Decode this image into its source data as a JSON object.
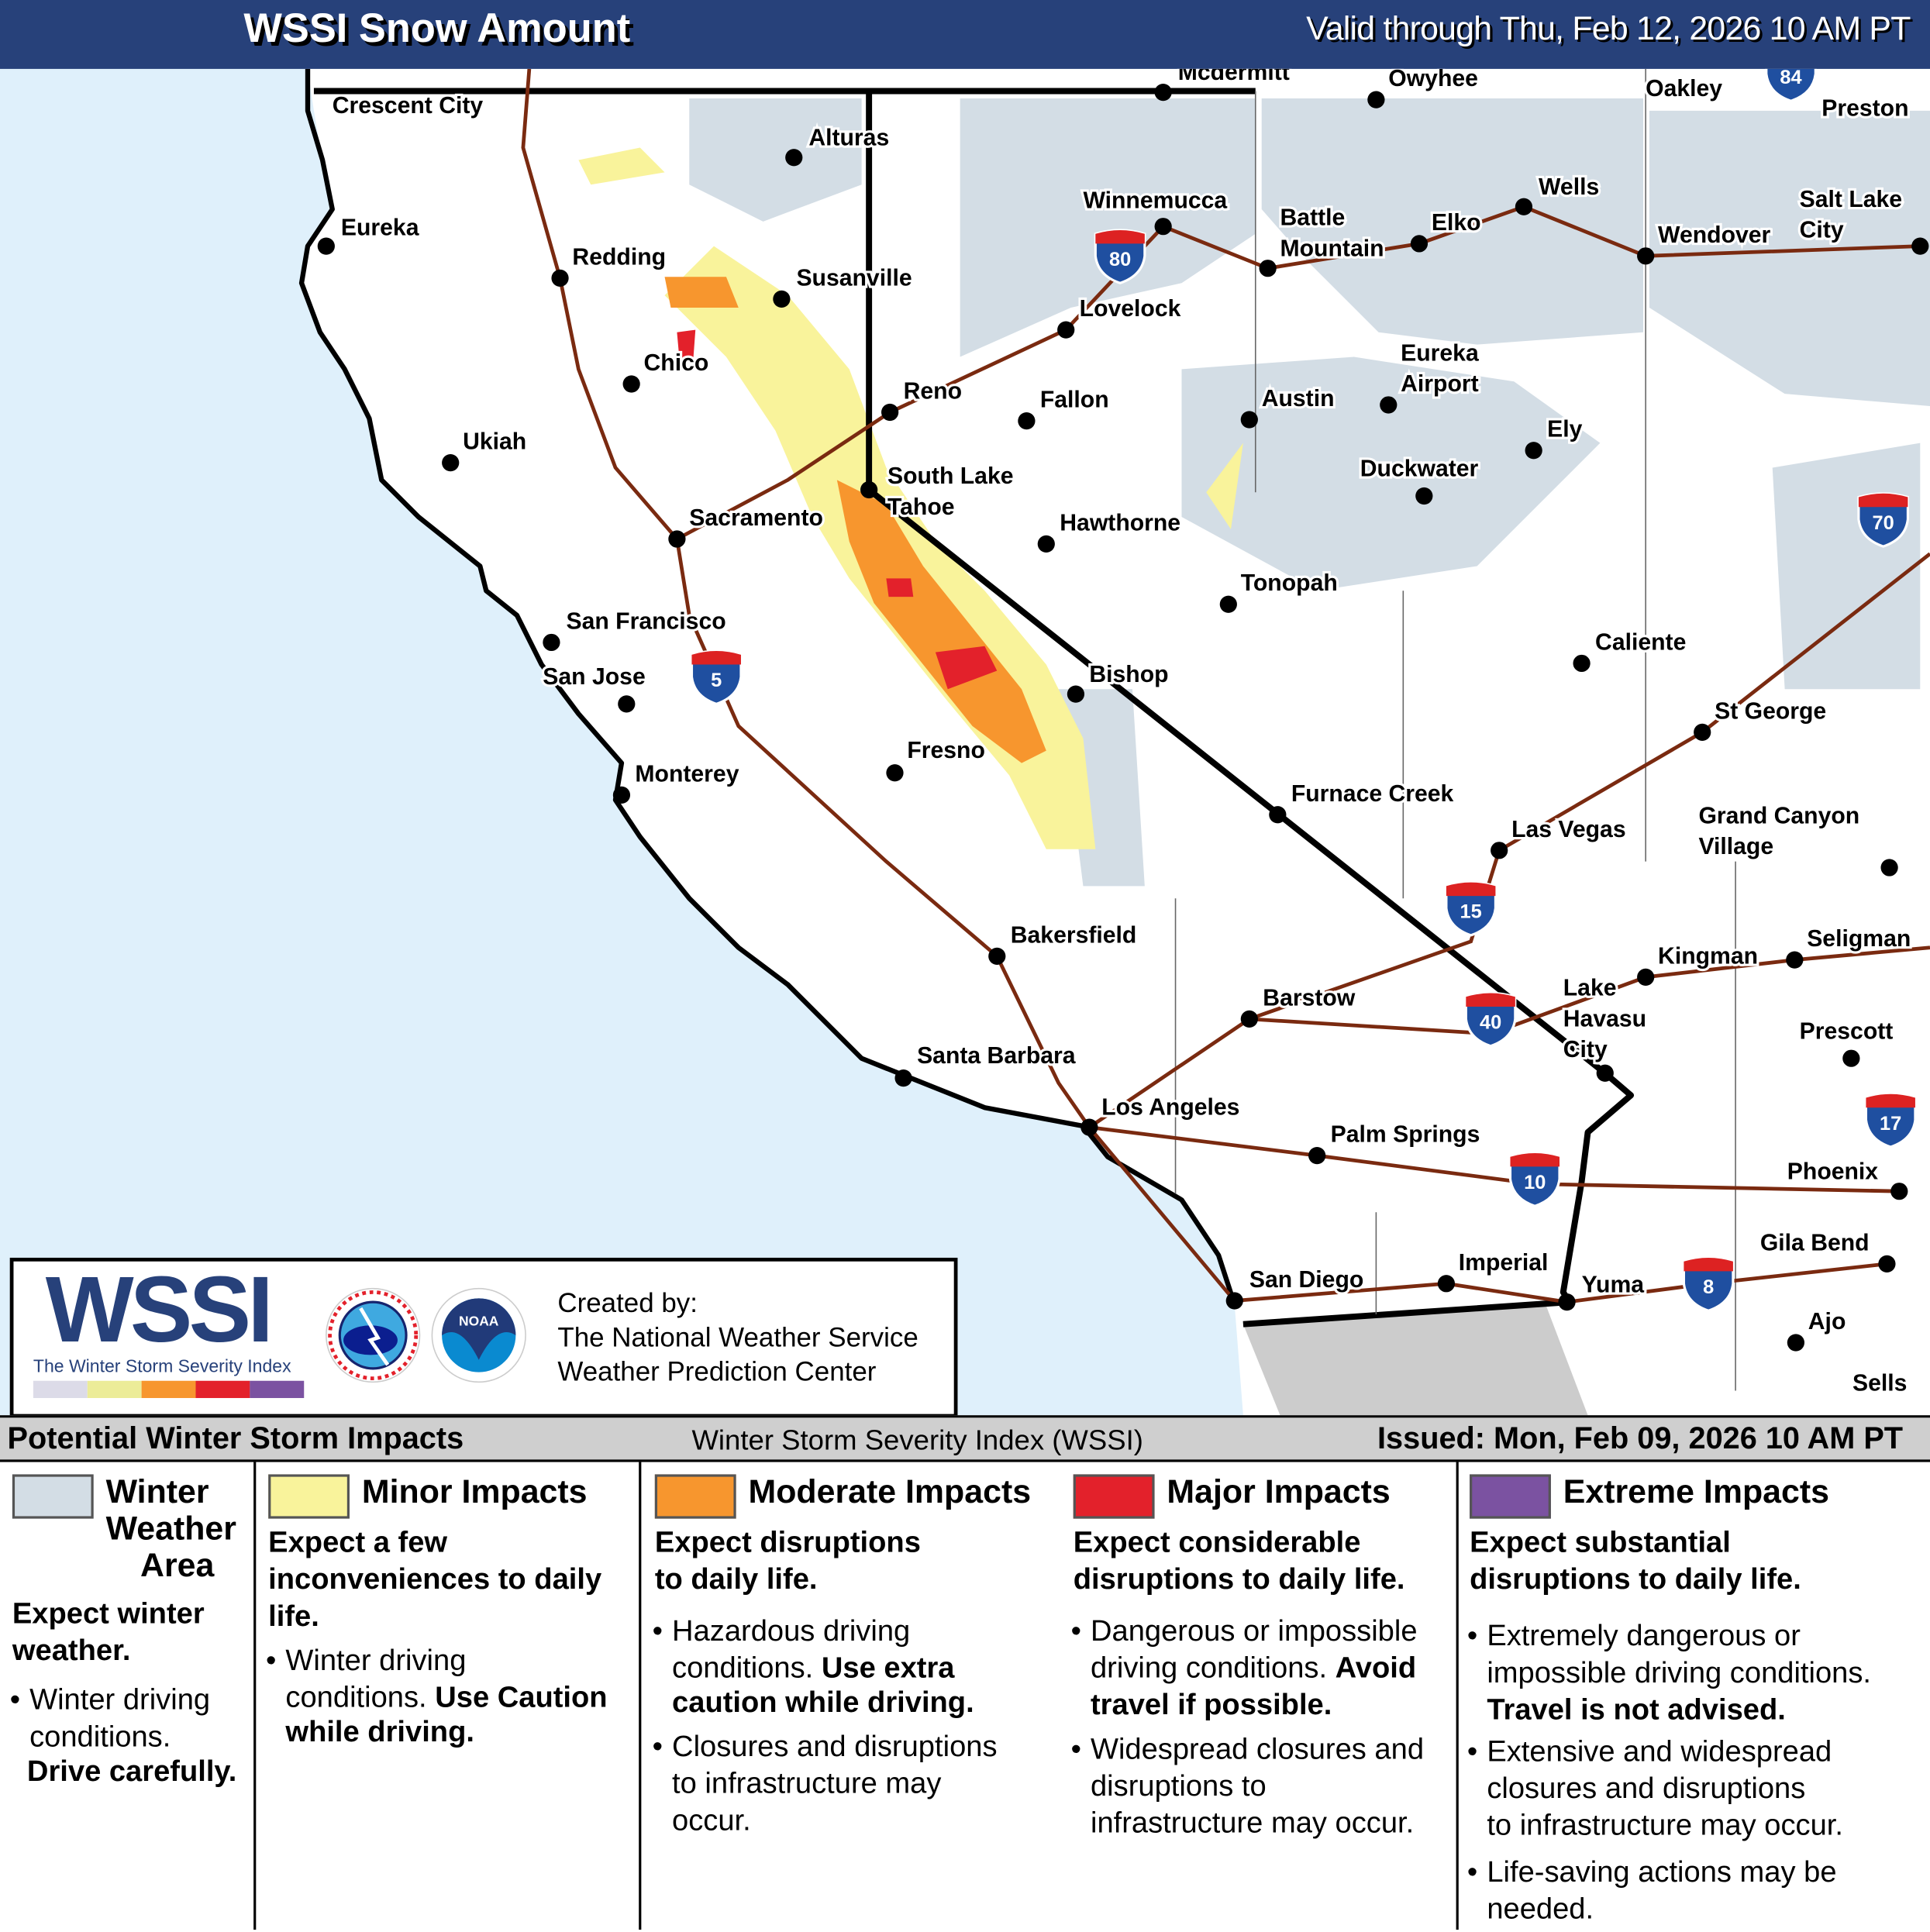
{
  "header": {
    "title": "WSSI Snow Amount",
    "valid": "Valid through Thu, Feb 12, 2026 10 AM PT"
  },
  "colors": {
    "winter": "#d3dde5",
    "minor": "#f9f39b",
    "moderate": "#f7962e",
    "major": "#e3212b",
    "extreme": "#7b52a1",
    "header": "#27417a",
    "ocean": "#dff0fb",
    "roads": "#7a2a10"
  },
  "map": {
    "cities": [
      "Crescent City",
      "Alturas",
      "Eureka",
      "Redding",
      "Susanville",
      "Winnemucca",
      "Battle Mountain",
      "Elko",
      "Wells",
      "Wendover",
      "Salt Lake City",
      "Owyhee",
      "Oakley",
      "Preston",
      "Mcdermitt",
      "Lovelock",
      "Chico",
      "Reno",
      "Fallon",
      "Austin",
      "Eureka Airport",
      "Ely",
      "Ukiah",
      "Duckwater",
      "South Lake Tahoe",
      "Sacramento",
      "Hawthorne",
      "Tonopah",
      "San Francisco",
      "Caliente",
      "San Jose",
      "Bishop",
      "St George",
      "Fresno",
      "Monterey",
      "Furnace Creek",
      "Grand Canyon Village",
      "Las Vegas",
      "Bakersfield",
      "Kingman",
      "Seligman",
      "Barstow",
      "Lake Havasu City",
      "Prescott",
      "Santa Barbara",
      "Los Angeles",
      "Palm Springs",
      "Phoenix",
      "Gila Bend",
      "San Diego",
      "Imperial",
      "Yuma",
      "Ajo",
      "Sells"
    ],
    "interstates": [
      "80",
      "5",
      "70",
      "15",
      "40",
      "17",
      "10",
      "8",
      "84"
    ]
  },
  "logo": {
    "wordmark": "WSSI",
    "tagline": "The Winter Storm Severity Index",
    "nws": "NATIONAL WEATHER SERVICE",
    "noaa": "NOAA",
    "created": "Created by:",
    "line1": "The National Weather Service",
    "line2": "Weather Prediction Center"
  },
  "legend": {
    "title": "Potential Winter Storm Impacts",
    "index": "Winter Storm Severity Index (WSSI)",
    "issued": "Issued: Mon, Feb 09, 2026 10 AM PT",
    "winter": {
      "t1": "Winter",
      "t2": "Weather",
      "t3": "Area",
      "sub1": "Expect winter",
      "sub2": "weather.",
      "b1": "Winter driving",
      "b2": "conditions.",
      "b3": "Drive carefully."
    },
    "minor": {
      "title": "Minor Impacts",
      "sub1": "Expect a few",
      "sub2": "inconveniences to daily",
      "sub3": "life.",
      "b1": "Winter driving",
      "b2": "conditions.",
      "b2b": "Use Caution",
      "b3": "while driving."
    },
    "moderate": {
      "title": "Moderate Impacts",
      "sub1": "Expect disruptions",
      "sub2": "to daily life.",
      "b1": "Hazardous driving",
      "b2": "conditions.",
      "b2b": "Use extra",
      "b3": "caution while driving.",
      "c1": "Closures and disruptions",
      "c2": "to infrastructure may",
      "c3": "occur."
    },
    "major": {
      "title": "Major Impacts",
      "sub1": "Expect considerable",
      "sub2": "disruptions to daily life.",
      "b1": "Dangerous or impossible",
      "b2": "driving conditions.",
      "b2b": "Avoid",
      "b3": "travel if possible.",
      "c1": "Widespread closures and",
      "c2": "disruptions to",
      "c3": "infrastructure may occur."
    },
    "extreme": {
      "title": "Extreme Impacts",
      "sub1": "Expect substantial",
      "sub2": "disruptions to daily life.",
      "b1": "Extremely dangerous or",
      "b2": "impossible driving conditions.",
      "b3": "Travel is not advised.",
      "c1": "Extensive and widespread",
      "c2": "closures and disruptions",
      "c3": "to infrastructure may occur.",
      "d1": "Life-saving actions may be",
      "d2": "needed."
    }
  }
}
